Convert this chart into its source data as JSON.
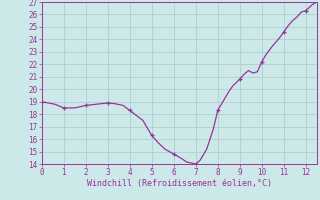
{
  "x": [
    0,
    0.3,
    0.6,
    1.0,
    1.5,
    2.0,
    2.5,
    3.0,
    3.3,
    3.7,
    4.0,
    4.3,
    4.6,
    5.0,
    5.3,
    5.6,
    6.0,
    6.3,
    6.6,
    7.0,
    7.2,
    7.5,
    7.8,
    8.0,
    8.3,
    8.5,
    8.7,
    9.0,
    9.2,
    9.4,
    9.6,
    9.8,
    10.0,
    10.2,
    10.5,
    10.8,
    11.0,
    11.2,
    11.4,
    11.6,
    11.8,
    12.0,
    12.3,
    12.5
  ],
  "y": [
    19.0,
    18.9,
    18.8,
    18.5,
    18.5,
    18.7,
    18.8,
    18.9,
    18.85,
    18.7,
    18.3,
    17.9,
    17.5,
    16.3,
    15.7,
    15.2,
    14.8,
    14.5,
    14.15,
    14.0,
    14.3,
    15.2,
    16.8,
    18.3,
    19.2,
    19.8,
    20.3,
    20.8,
    21.2,
    21.5,
    21.3,
    21.4,
    22.2,
    22.8,
    23.5,
    24.1,
    24.6,
    25.1,
    25.5,
    25.8,
    26.2,
    26.3,
    26.8,
    27.0
  ],
  "marker_x": [
    0,
    1,
    2,
    3,
    4,
    5,
    6,
    7,
    8,
    9,
    10,
    11,
    12
  ],
  "marker_y": [
    19.0,
    18.5,
    18.7,
    18.9,
    18.3,
    16.3,
    14.8,
    14.0,
    18.3,
    20.8,
    22.2,
    24.6,
    26.3
  ],
  "line_color": "#993399",
  "marker_color": "#993399",
  "bg_color": "#cce8e8",
  "grid_color": "#aacccc",
  "xlabel": "Windchill (Refroidissement éolien,°C)",
  "ylim": [
    14,
    27
  ],
  "xlim": [
    0,
    12.5
  ],
  "yticks": [
    14,
    15,
    16,
    17,
    18,
    19,
    20,
    21,
    22,
    23,
    24,
    25,
    26,
    27
  ],
  "xticks": [
    0,
    1,
    2,
    3,
    4,
    5,
    6,
    7,
    8,
    9,
    10,
    11,
    12
  ],
  "label_color": "#993399",
  "font_family": "monospace",
  "tick_labelsize": 5.5,
  "xlabel_fontsize": 6.0
}
